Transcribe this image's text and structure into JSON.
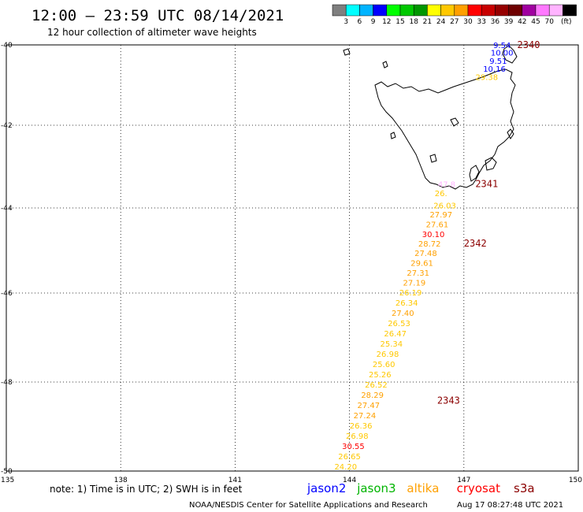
{
  "header": {
    "title": "12:00 – 23:59 UTC 08/14/2021",
    "subtitle": "12 hour collection of altimeter wave heights"
  },
  "colorbar": {
    "colors": [
      "#7f7f7f",
      "#00ffff",
      "#00b4ff",
      "#0000ff",
      "#00ff00",
      "#00c800",
      "#009600",
      "#ffff00",
      "#ffc800",
      "#ffa000",
      "#ff0000",
      "#c80000",
      "#960000",
      "#6e0000",
      "#a000a0",
      "#ff78ff",
      "#ffb4ff",
      "#000000"
    ],
    "labels": [
      "3",
      "6",
      "9",
      "12",
      "15",
      "18",
      "21",
      "24",
      "27",
      "30",
      "33",
      "36",
      "39",
      "42",
      "45",
      "70"
    ],
    "unit": "(ft)"
  },
  "axes": {
    "lon_labels": [
      "135",
      "138",
      "141",
      "144",
      "147",
      "150"
    ],
    "lat_labels": [
      "-40",
      "-42",
      "-44",
      "-46",
      "-48",
      "-50"
    ]
  },
  "map_data": {
    "lon_range": [
      135,
      150
    ],
    "lat_range": [
      -50,
      -40
    ],
    "time_labels": [
      {
        "text": "2340",
        "lon": 148.4,
        "lat": -40.0,
        "color": "#8b0000"
      },
      {
        "text": "2341",
        "lon": 147.3,
        "lat": -43.42,
        "color": "#8b0000"
      },
      {
        "text": "2342",
        "lon": 147.0,
        "lat": -44.83,
        "color": "#8b0000"
      },
      {
        "text": "2343",
        "lon": 146.3,
        "lat": -48.42,
        "color": "#8b0000"
      }
    ],
    "observations": [
      {
        "v": "9.54",
        "lon": 148.0,
        "lat": -40.0,
        "color": "#0000ff"
      },
      {
        "v": "10.00",
        "lon": 148.0,
        "lat": -40.19,
        "color": "#0000ff"
      },
      {
        "v": "9.51",
        "lon": 147.9,
        "lat": -40.39,
        "color": "#0000ff"
      },
      {
        "v": "10.16",
        "lon": 147.8,
        "lat": -40.59,
        "color": "#0000ff"
      },
      {
        "v": "29.38",
        "lon": 147.6,
        "lat": -40.79,
        "color": "#ffc800"
      },
      {
        "v": "47.8",
        "lon": 146.55,
        "lat": -43.42,
        "color": "#ffb4ff"
      },
      {
        "v": "26.",
        "lon": 146.4,
        "lat": -43.64,
        "color": "#ffc800"
      },
      {
        "v": "26.03",
        "lon": 146.5,
        "lat": -43.93,
        "color": "#ffc800"
      },
      {
        "v": "27.97",
        "lon": 146.4,
        "lat": -44.15,
        "color": "#ffa000"
      },
      {
        "v": "27.61",
        "lon": 146.3,
        "lat": -44.38,
        "color": "#ffa000"
      },
      {
        "v": "30.10",
        "lon": 146.2,
        "lat": -44.61,
        "color": "#ff0000"
      },
      {
        "v": "28.72",
        "lon": 146.1,
        "lat": -44.83,
        "color": "#ffa000"
      },
      {
        "v": "27.48",
        "lon": 146.0,
        "lat": -45.06,
        "color": "#ffa000"
      },
      {
        "v": "29.61",
        "lon": 145.9,
        "lat": -45.29,
        "color": "#ffa000"
      },
      {
        "v": "27.31",
        "lon": 145.8,
        "lat": -45.52,
        "color": "#ffa000"
      },
      {
        "v": "27.19",
        "lon": 145.7,
        "lat": -45.75,
        "color": "#ffa000"
      },
      {
        "v": "26.19",
        "lon": 145.6,
        "lat": -45.98,
        "color": "#ffc800"
      },
      {
        "v": "26.34",
        "lon": 145.5,
        "lat": -46.21,
        "color": "#ffc800"
      },
      {
        "v": "27.40",
        "lon": 145.4,
        "lat": -46.44,
        "color": "#ffa000"
      },
      {
        "v": "26.53",
        "lon": 145.3,
        "lat": -46.67,
        "color": "#ffc800"
      },
      {
        "v": "26.47",
        "lon": 145.2,
        "lat": -46.9,
        "color": "#ffc800"
      },
      {
        "v": "25.34",
        "lon": 145.1,
        "lat": -47.13,
        "color": "#ffc800"
      },
      {
        "v": "26.98",
        "lon": 145.0,
        "lat": -47.36,
        "color": "#ffc800"
      },
      {
        "v": "25.60",
        "lon": 144.9,
        "lat": -47.59,
        "color": "#ffc800"
      },
      {
        "v": "25.26",
        "lon": 144.8,
        "lat": -47.82,
        "color": "#ffc800"
      },
      {
        "v": "26.52",
        "lon": 144.7,
        "lat": -48.05,
        "color": "#ffc800"
      },
      {
        "v": "28.29",
        "lon": 144.6,
        "lat": -48.28,
        "color": "#ffa000"
      },
      {
        "v": "27.47",
        "lon": 144.5,
        "lat": -48.51,
        "color": "#ffa000"
      },
      {
        "v": "27.24",
        "lon": 144.4,
        "lat": -48.74,
        "color": "#ffa000"
      },
      {
        "v": "26.36",
        "lon": 144.3,
        "lat": -48.97,
        "color": "#ffc800"
      },
      {
        "v": "26.98",
        "lon": 144.2,
        "lat": -49.2,
        "color": "#ffc800"
      },
      {
        "v": "30.55",
        "lon": 144.1,
        "lat": -49.43,
        "color": "#ff0000"
      },
      {
        "v": "26.65",
        "lon": 144.0,
        "lat": -49.66,
        "color": "#ffc800"
      },
      {
        "v": "24.20",
        "lon": 143.9,
        "lat": -49.89,
        "color": "#ffc800"
      }
    ]
  },
  "footer": {
    "note": "note: 1) Time is in UTC; 2) SWH is in feet",
    "credit": "NOAA/NESDIS Center for Satellite Applications and Research",
    "timestamp": "Aug 17 08:27:48 UTC 2021",
    "legend": [
      {
        "name": "jason2",
        "color": "#0000ff"
      },
      {
        "name": "jason3",
        "color": "#00b400"
      },
      {
        "name": "altika",
        "color": "#ffa000"
      },
      {
        "name": "cryosat",
        "color": "#ff0000"
      },
      {
        "name": "s3a",
        "color": "#8b0000"
      }
    ]
  }
}
